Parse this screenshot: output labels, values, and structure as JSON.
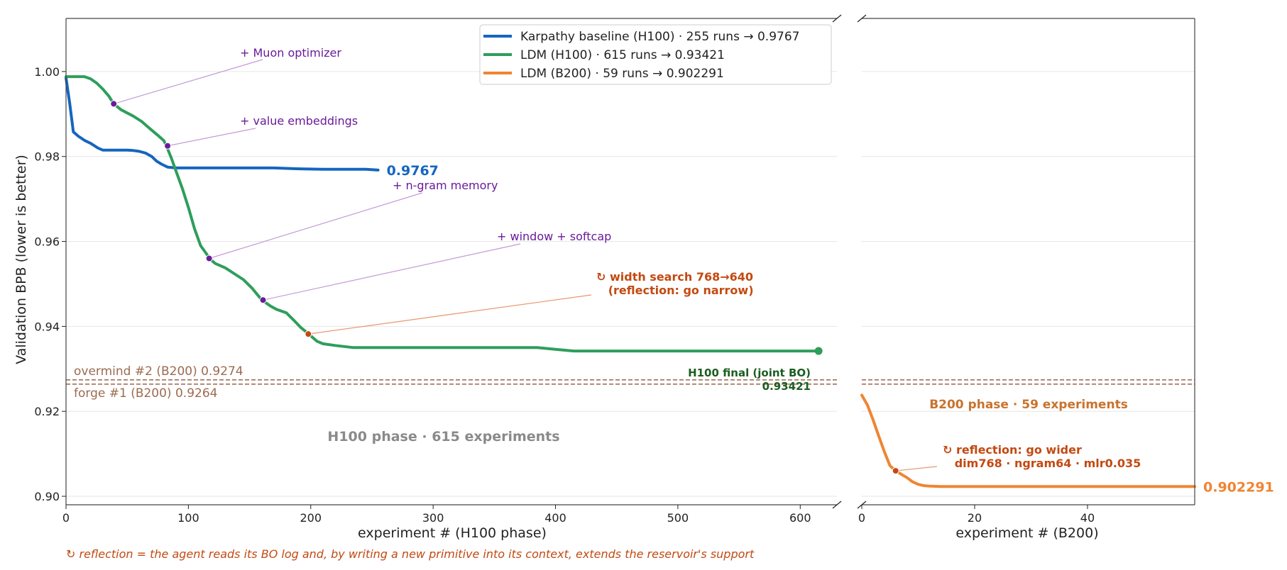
{
  "chart_data": {
    "type": "line",
    "ylabel": "Validation BPB  (lower is better)",
    "ylim": [
      0.898,
      1.0125
    ],
    "yticks": [
      "0.90",
      "0.92",
      "0.94",
      "0.96",
      "0.98",
      "1.00"
    ],
    "grid": true,
    "legend": {
      "placement": "top-center",
      "entries": [
        {
          "name": "Karpathy baseline (H100)  ·  255 runs  →  0.9767",
          "color": "#1565c0"
        },
        {
          "name": "LDM (H100)  ·  615 runs  →  0.93421",
          "color": "#2e9e5b"
        },
        {
          "name": "LDM (B200)  ·  59 runs  →  0.902291",
          "color": "#ef8533"
        }
      ]
    },
    "panels": [
      {
        "id": "h100",
        "xlabel": "experiment #   (H100 phase)",
        "xlim": [
          0,
          630
        ],
        "xticks": [
          "0",
          "100",
          "200",
          "300",
          "400",
          "500",
          "600"
        ],
        "phase_label": "H100 phase  ·  615 experiments",
        "series": [
          {
            "name": "Karpathy baseline (H100)",
            "color": "#1565c0",
            "end_label": "0.9767",
            "x": [
              0,
              3,
              6,
              10,
              15,
              20,
              26,
              30,
              35,
              42,
              50,
              55,
              60,
              65,
              70,
              74,
              78,
              83,
              90,
              100,
              120,
              150,
              170,
              190,
              210,
              230,
              245,
              255
            ],
            "y": [
              0.9985,
              0.9925,
              0.9858,
              0.9848,
              0.9838,
              0.9831,
              0.982,
              0.9815,
              0.9815,
              0.9815,
              0.9815,
              0.9814,
              0.9812,
              0.9808,
              0.98,
              0.9789,
              0.9782,
              0.9775,
              0.9773,
              0.9773,
              0.9773,
              0.9773,
              0.9773,
              0.9771,
              0.977,
              0.977,
              0.977,
              0.9768
            ]
          },
          {
            "name": "LDM (H100)",
            "color": "#2e9e5b",
            "x": [
              0,
              10,
              15,
              20,
              25,
              30,
              35,
              39,
              45,
              55,
              62,
              68,
              75,
              80,
              82,
              86,
              90,
              95,
              100,
              105,
              110,
              115,
              117,
              122,
              130,
              137,
              145,
              152,
              160,
              167,
              172,
              180,
              186,
              192,
              198,
              205,
              210,
              220,
              235,
              260,
              300,
              340,
              385,
              400,
              415,
              450,
              500,
              550,
              600,
              615
            ],
            "y": [
              0.9988,
              0.9988,
              0.9988,
              0.9983,
              0.9973,
              0.9959,
              0.9942,
              0.9924,
              0.991,
              0.9895,
              0.9882,
              0.9867,
              0.985,
              0.9837,
              0.9825,
              0.9797,
              0.9765,
              0.9725,
              0.968,
              0.963,
              0.959,
              0.957,
              0.956,
              0.9548,
              0.9538,
              0.9525,
              0.951,
              0.949,
              0.9462,
              0.9448,
              0.944,
              0.9432,
              0.9415,
              0.9397,
              0.9383,
              0.9365,
              0.9359,
              0.9355,
              0.935,
              0.935,
              0.935,
              0.935,
              0.935,
              0.9346,
              0.9342,
              0.9342,
              0.9342,
              0.9342,
              0.9342,
              0.9342
            ]
          }
        ],
        "final_marker": {
          "x": 615,
          "y": 0.93421,
          "color": "#2e9e5b"
        },
        "final_label": [
          "H100 final (joint BO)",
          "0.93421"
        ],
        "annotations": [
          {
            "text": [
              "+ Muon optimizer"
            ],
            "point": [
              39,
              0.9924
            ],
            "style": "purple"
          },
          {
            "text": [
              "+ value embeddings"
            ],
            "point": [
              83,
              0.9825
            ],
            "style": "purple"
          },
          {
            "text": [
              "+ n-gram memory"
            ],
            "point": [
              117,
              0.956
            ],
            "style": "purple"
          },
          {
            "text": [
              "+ window + softcap"
            ],
            "point": [
              161,
              0.9462
            ],
            "style": "purple"
          },
          {
            "text": [
              "↻ width search 768→640",
              "   (reflection: go narrow)"
            ],
            "point": [
              198,
              0.9382
            ],
            "style": "red"
          }
        ]
      },
      {
        "id": "b200",
        "xlabel": "experiment #   (B200)",
        "xlim": [
          0,
          59
        ],
        "xticks": [
          "0",
          "20",
          "40"
        ],
        "phase_label": "B200 phase  ·  59 experiments",
        "series": [
          {
            "name": "LDM (B200)",
            "color": "#ef8533",
            "end_label": "0.902291",
            "x": [
              0,
              1,
              2,
              3,
              4,
              5,
              6,
              7,
              8,
              9,
              10,
              11,
              12,
              14,
              16,
              20,
              30,
              40,
              50,
              59
            ],
            "y": [
              0.9238,
              0.9215,
              0.918,
              0.9142,
              0.9105,
              0.9072,
              0.906,
              0.9052,
              0.9044,
              0.9034,
              0.9028,
              0.9025,
              0.9024,
              0.90229,
              0.90229,
              0.90229,
              0.90229,
              0.90229,
              0.90229,
              0.90229
            ]
          }
        ],
        "annotations": [
          {
            "text": [
              "↻ reflection: go wider",
              "   dim768 · ngram64 · mlr0.035"
            ],
            "point": [
              6,
              0.906
            ],
            "style": "red"
          }
        ]
      }
    ],
    "reference_lines": [
      {
        "label": "overmind #2 (B200)  0.9274",
        "value": 0.9274,
        "color": "#a0705a"
      },
      {
        "label": "forge #1 (B200)  0.9264",
        "value": 0.9264,
        "color": "#a0705a"
      }
    ],
    "footnote": "↻ reflection = the agent reads its BO log and, by writing a new primitive into its context, extends the reservoir's support"
  }
}
